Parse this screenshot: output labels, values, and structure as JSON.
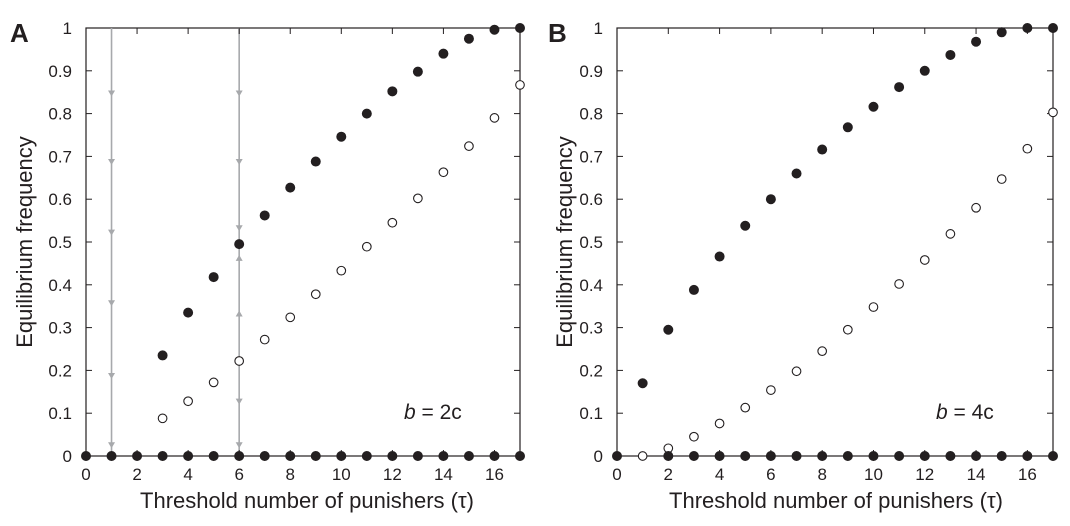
{
  "chart_data": [
    {
      "panel": "A",
      "type": "scatter",
      "xlabel": "Threshold number of punishers (τ)",
      "ylabel": "Equilibrium frequency",
      "annotation": {
        "italic": "b",
        "rest": " = 2c"
      },
      "xlim": [
        0,
        17
      ],
      "ylim": [
        0,
        1
      ],
      "xticks": [
        "0",
        "2",
        "4",
        "6",
        "8",
        "10",
        "12",
        "14",
        "16"
      ],
      "yticks": [
        "0",
        "0.1",
        "0.2",
        "0.3",
        "0.4",
        "0.5",
        "0.6",
        "0.7",
        "0.8",
        "0.9",
        "1"
      ],
      "series": [
        {
          "marker": "filled",
          "x": [
            3,
            4,
            5,
            6,
            7,
            8,
            9,
            10,
            11,
            12,
            13,
            14,
            15,
            16,
            17
          ],
          "y": [
            0.235,
            0.335,
            0.418,
            0.495,
            0.562,
            0.627,
            0.688,
            0.746,
            0.8,
            0.852,
            0.898,
            0.94,
            0.975,
            0.996,
            1.0
          ]
        },
        {
          "marker": "open",
          "x": [
            3,
            4,
            5,
            6,
            7,
            8,
            9,
            10,
            11,
            12,
            13,
            14,
            15,
            16,
            17
          ],
          "y": [
            0.088,
            0.128,
            0.172,
            0.222,
            0.272,
            0.324,
            0.378,
            0.433,
            0.489,
            0.545,
            0.602,
            0.663,
            0.724,
            0.79,
            0.867
          ]
        },
        {
          "marker": "filled",
          "x": [
            0,
            1,
            2,
            3,
            4,
            5,
            6,
            7,
            8,
            9,
            10,
            11,
            12,
            13,
            14,
            15,
            16,
            17
          ],
          "y": [
            0,
            0,
            0,
            0,
            0,
            0,
            0,
            0,
            0,
            0,
            0,
            0,
            0,
            0,
            0,
            0,
            0,
            0
          ]
        }
      ],
      "flow_lines": [
        {
          "x": 1,
          "from": 1.0,
          "to": 0.0,
          "arrows": [
            {
              "y": 0.84,
              "dir": "down"
            },
            {
              "y": 0.68,
              "dir": "down"
            },
            {
              "y": 0.515,
              "dir": "down"
            },
            {
              "y": 0.35,
              "dir": "down"
            },
            {
              "y": 0.18,
              "dir": "down"
            },
            {
              "y": 0.018,
              "dir": "down"
            }
          ]
        },
        {
          "x": 6,
          "from": 1.0,
          "to": 0.0,
          "arrows": [
            {
              "y": 0.84,
              "dir": "down"
            },
            {
              "y": 0.68,
              "dir": "down"
            },
            {
              "y": 0.525,
              "dir": "down"
            },
            {
              "y": 0.47,
              "dir": "up"
            },
            {
              "y": 0.34,
              "dir": "up"
            },
            {
              "y": 0.12,
              "dir": "down"
            },
            {
              "y": 0.018,
              "dir": "down"
            }
          ]
        }
      ]
    },
    {
      "panel": "B",
      "type": "scatter",
      "xlabel": "Threshold number of punishers (τ)",
      "ylabel": "Equilibrium frequency",
      "annotation": {
        "italic": "b",
        "rest": " = 4c"
      },
      "xlim": [
        0,
        17
      ],
      "ylim": [
        0,
        1
      ],
      "xticks": [
        "0",
        "2",
        "4",
        "6",
        "8",
        "10",
        "12",
        "14",
        "16"
      ],
      "yticks": [
        "0",
        "0.1",
        "0.2",
        "0.3",
        "0.4",
        "0.5",
        "0.6",
        "0.7",
        "0.8",
        "0.9",
        "1"
      ],
      "series": [
        {
          "marker": "filled",
          "x": [
            1,
            2,
            3,
            4,
            5,
            6,
            7,
            8,
            9,
            10,
            11,
            12,
            13,
            14,
            15,
            16,
            17
          ],
          "y": [
            0.17,
            0.295,
            0.388,
            0.466,
            0.538,
            0.6,
            0.66,
            0.716,
            0.768,
            0.816,
            0.862,
            0.9,
            0.937,
            0.968,
            0.99,
            1.0,
            1.0
          ]
        },
        {
          "marker": "open",
          "x": [
            1,
            2,
            3,
            4,
            5,
            6,
            7,
            8,
            9,
            10,
            11,
            12,
            13,
            14,
            15,
            16,
            17
          ],
          "y": [
            0.0,
            0.018,
            0.045,
            0.076,
            0.113,
            0.154,
            0.198,
            0.245,
            0.295,
            0.348,
            0.402,
            0.458,
            0.519,
            0.58,
            0.647,
            0.718,
            0.803
          ]
        },
        {
          "marker": "filled",
          "x": [
            0,
            2,
            3,
            4,
            5,
            6,
            7,
            8,
            9,
            10,
            11,
            12,
            13,
            14,
            15,
            16,
            17
          ],
          "y": [
            0,
            0,
            0,
            0,
            0,
            0,
            0,
            0,
            0,
            0,
            0,
            0,
            0,
            0,
            0,
            0,
            0
          ]
        }
      ],
      "flow_lines": []
    }
  ]
}
